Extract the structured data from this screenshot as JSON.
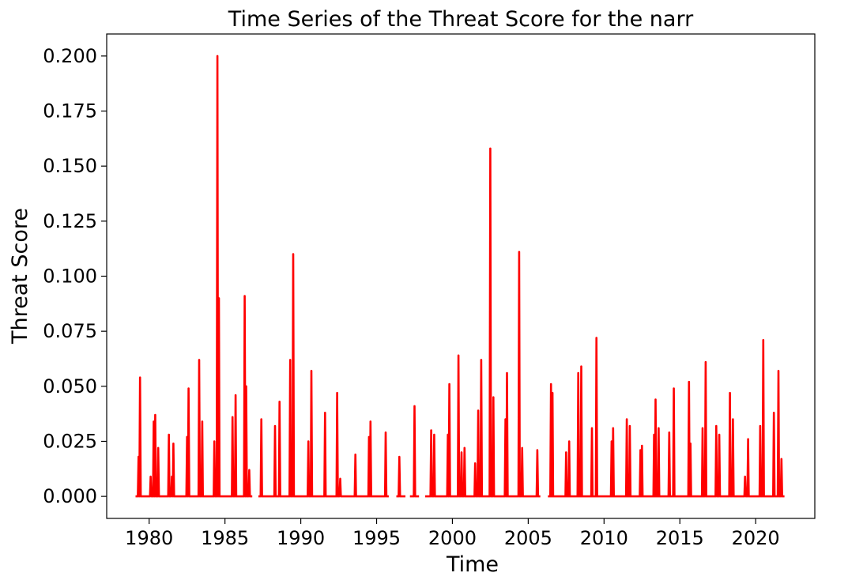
{
  "chart_data": {
    "type": "line",
    "title": "Time Series of the Threat Score for the narr",
    "xlabel": "Time",
    "ylabel": "Threat Score",
    "xlim": [
      1977.2,
      2023.9
    ],
    "ylim": [
      -0.01,
      0.21
    ],
    "x_ticks": [
      1980,
      1985,
      1990,
      1995,
      2000,
      2005,
      2010,
      2015,
      2020
    ],
    "x_tick_labels": [
      "1980",
      "1985",
      "1990",
      "1995",
      "2000",
      "2005",
      "2010",
      "2015",
      "2020"
    ],
    "y_ticks": [
      0.0,
      0.025,
      0.05,
      0.075,
      0.1,
      0.125,
      0.15,
      0.175,
      0.2
    ],
    "y_tick_labels": [
      "0.000",
      "0.025",
      "0.050",
      "0.075",
      "0.100",
      "0.125",
      "0.150",
      "0.175",
      "0.200"
    ],
    "grid": false,
    "series": [
      {
        "color": "#ff0000",
        "segments": [
          {
            "start": 1979.1,
            "end": 1986.8,
            "spikes": [
              [
                1979.3,
                0.018
              ],
              [
                1979.4,
                0.054
              ],
              [
                1980.1,
                0.009
              ],
              [
                1980.3,
                0.034
              ],
              [
                1980.4,
                0.037
              ],
              [
                1980.6,
                0.022
              ],
              [
                1981.3,
                0.028
              ],
              [
                1981.5,
                0.009
              ],
              [
                1981.6,
                0.024
              ],
              [
                1982.5,
                0.027
              ],
              [
                1982.6,
                0.049
              ],
              [
                1983.3,
                0.062
              ],
              [
                1983.5,
                0.034
              ],
              [
                1984.3,
                0.025
              ],
              [
                1984.5,
                0.2
              ],
              [
                1984.6,
                0.09
              ],
              [
                1985.5,
                0.036
              ],
              [
                1985.7,
                0.046
              ],
              [
                1986.3,
                0.091
              ],
              [
                1986.4,
                0.05
              ],
              [
                1986.6,
                0.012
              ]
            ]
          },
          {
            "start": 1987.2,
            "end": 1995.8,
            "spikes": [
              [
                1987.4,
                0.035
              ],
              [
                1988.3,
                0.032
              ],
              [
                1988.6,
                0.043
              ],
              [
                1989.3,
                0.062
              ],
              [
                1989.5,
                0.11
              ],
              [
                1990.5,
                0.025
              ],
              [
                1990.7,
                0.057
              ],
              [
                1991.6,
                0.038
              ],
              [
                1992.4,
                0.047
              ],
              [
                1992.6,
                0.008
              ],
              [
                1993.6,
                0.019
              ],
              [
                1994.5,
                0.027
              ],
              [
                1994.6,
                0.034
              ],
              [
                1995.6,
                0.029
              ]
            ]
          },
          {
            "start": 1996.3,
            "end": 1996.9,
            "spikes": [
              [
                1996.5,
                0.018
              ]
            ]
          },
          {
            "start": 1997.2,
            "end": 1997.8,
            "spikes": [
              [
                1997.5,
                0.041
              ]
            ]
          },
          {
            "start": 1998.2,
            "end": 2005.8,
            "spikes": [
              [
                1998.6,
                0.03
              ],
              [
                1998.8,
                0.028
              ],
              [
                1999.7,
                0.028
              ],
              [
                1999.8,
                0.051
              ],
              [
                2000.4,
                0.064
              ],
              [
                2000.6,
                0.02
              ],
              [
                2000.8,
                0.022
              ],
              [
                2001.5,
                0.015
              ],
              [
                2001.7,
                0.039
              ],
              [
                2001.9,
                0.062
              ],
              [
                2002.5,
                0.158
              ],
              [
                2002.7,
                0.045
              ],
              [
                2003.5,
                0.035
              ],
              [
                2003.6,
                0.056
              ],
              [
                2004.4,
                0.111
              ],
              [
                2004.6,
                0.022
              ],
              [
                2005.6,
                0.021
              ]
            ]
          },
          {
            "start": 2006.3,
            "end": 2021.9,
            "spikes": [
              [
                2006.5,
                0.051
              ],
              [
                2006.6,
                0.047
              ],
              [
                2007.5,
                0.02
              ],
              [
                2007.7,
                0.025
              ],
              [
                2008.3,
                0.056
              ],
              [
                2008.5,
                0.059
              ],
              [
                2009.2,
                0.031
              ],
              [
                2009.5,
                0.072
              ],
              [
                2010.5,
                0.025
              ],
              [
                2010.6,
                0.031
              ],
              [
                2011.5,
                0.035
              ],
              [
                2011.7,
                0.032
              ],
              [
                2012.4,
                0.021
              ],
              [
                2012.5,
                0.023
              ],
              [
                2013.3,
                0.028
              ],
              [
                2013.4,
                0.044
              ],
              [
                2013.6,
                0.031
              ],
              [
                2014.3,
                0.029
              ],
              [
                2014.6,
                0.049
              ],
              [
                2015.6,
                0.052
              ],
              [
                2015.7,
                0.024
              ],
              [
                2016.5,
                0.031
              ],
              [
                2016.7,
                0.061
              ],
              [
                2017.4,
                0.032
              ],
              [
                2017.6,
                0.028
              ],
              [
                2018.3,
                0.047
              ],
              [
                2018.5,
                0.035
              ],
              [
                2019.3,
                0.009
              ],
              [
                2019.5,
                0.026
              ],
              [
                2020.3,
                0.032
              ],
              [
                2020.5,
                0.071
              ],
              [
                2021.2,
                0.038
              ],
              [
                2021.5,
                0.057
              ],
              [
                2021.7,
                0.017
              ]
            ]
          }
        ]
      }
    ]
  }
}
